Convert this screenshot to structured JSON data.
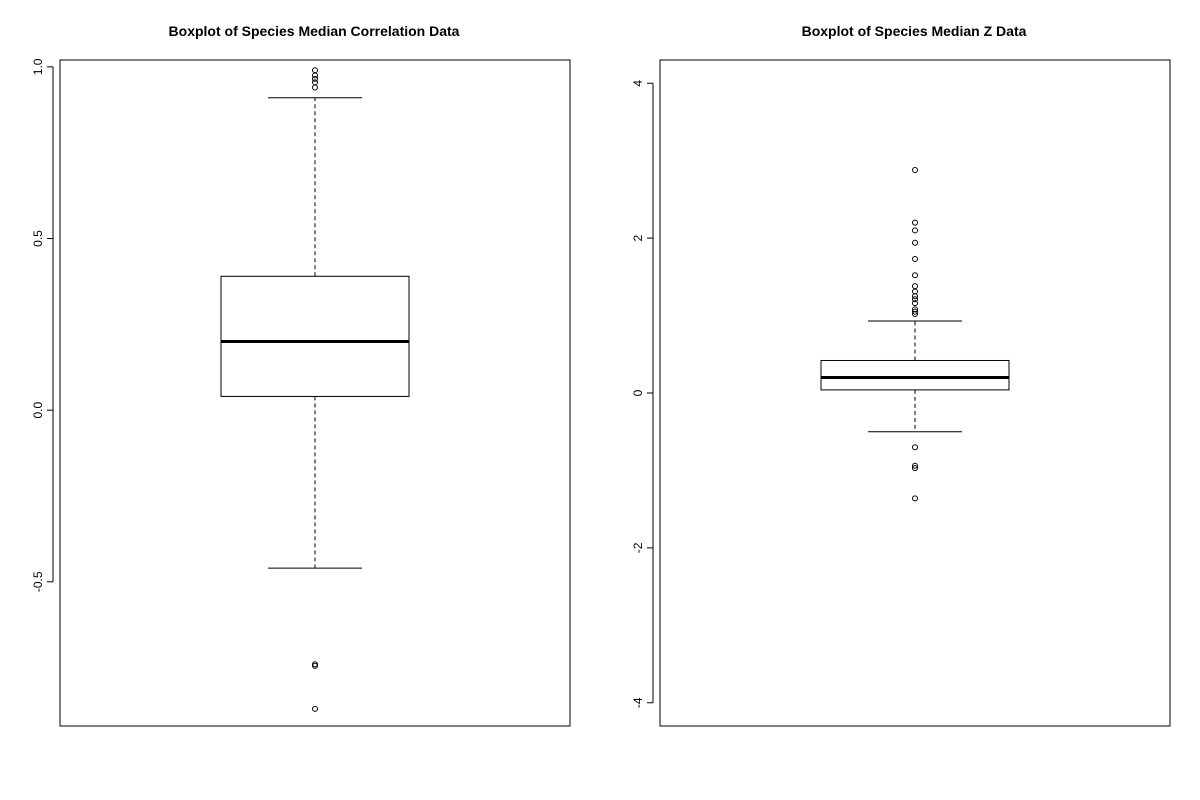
{
  "chart_data": [
    {
      "type": "boxplot",
      "title": "Boxplot of Species Median Correlation Data",
      "xlabel": "",
      "ylabel": "",
      "ylim": [
        -0.92,
        1.02
      ],
      "yticks": [
        -0.5,
        0.0,
        0.5,
        1.0
      ],
      "ytick_labels": [
        "-0.5",
        "0.0",
        "0.5",
        "1.0"
      ],
      "box": {
        "whisker_low": -0.46,
        "q1": 0.04,
        "median": 0.2,
        "q3": 0.39,
        "whisker_high": 0.91
      },
      "outliers": [
        0.99,
        0.975,
        0.965,
        0.955,
        0.94,
        -0.74,
        -0.745,
        -0.87
      ],
      "grid": false,
      "legend": false
    },
    {
      "type": "boxplot",
      "title": "Boxplot of Species Median Z Data",
      "xlabel": "",
      "ylabel": "",
      "ylim": [
        -4.3,
        4.3
      ],
      "yticks": [
        -4,
        -2,
        0,
        2,
        4
      ],
      "ytick_labels": [
        "-4",
        "-2",
        "0",
        "2",
        "4"
      ],
      "box": {
        "whisker_low": -0.5,
        "q1": 0.04,
        "median": 0.2,
        "q3": 0.42,
        "whisker_high": 0.93
      },
      "outliers": [
        2.88,
        2.2,
        2.1,
        1.94,
        1.73,
        1.52,
        1.38,
        1.31,
        1.25,
        1.21,
        1.16,
        1.08,
        1.05,
        1.02,
        -0.7,
        -0.94,
        -0.97,
        -1.36
      ],
      "grid": false,
      "legend": false
    }
  ]
}
